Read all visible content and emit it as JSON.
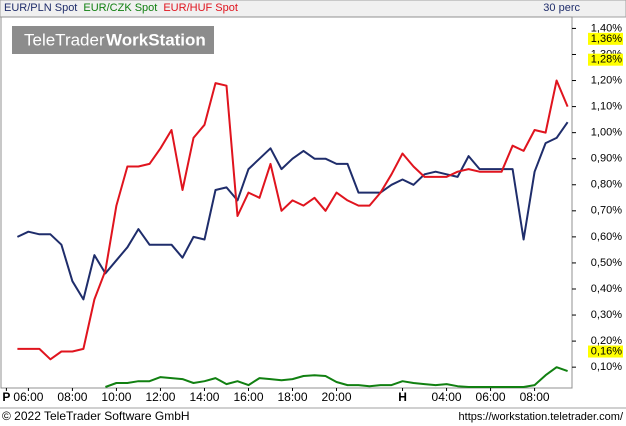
{
  "chart_data": {
    "type": "line",
    "period_label": "30 perc",
    "watermark": {
      "brand": "TeleTrader",
      "product": "WorkStation"
    },
    "x": [
      -0.3,
      0.2,
      0.7,
      1.2,
      1.7,
      2.2,
      2.7,
      3.2,
      3.7,
      4.2,
      4.7,
      5.2,
      5.7,
      6.2,
      6.7,
      7.2,
      7.7,
      8.2,
      8.7,
      9.2,
      9.7,
      10.2,
      10.7,
      11.2,
      11.7,
      12.2,
      12.7,
      13.2,
      13.7,
      14.2,
      14.7,
      15.2,
      15.7,
      16.2,
      16.7,
      17.2,
      17.7,
      18.2,
      18.7,
      19.2,
      19.7,
      20.2,
      20.7,
      21.2,
      21.7,
      22.2,
      22.7,
      23.2,
      23.7,
      24.2,
      24.7
    ],
    "series": [
      {
        "name": "EUR/PLN Spot",
        "color": "#1f2d6b",
        "values": [
          0.6,
          0.62,
          0.61,
          0.61,
          0.57,
          0.43,
          0.36,
          0.53,
          0.46,
          0.51,
          0.56,
          0.63,
          0.57,
          0.57,
          0.57,
          0.52,
          0.6,
          0.59,
          0.78,
          0.79,
          0.74,
          0.86,
          0.9,
          0.94,
          0.86,
          0.9,
          0.93,
          0.9,
          0.9,
          0.88,
          0.88,
          0.77,
          0.77,
          0.77,
          0.8,
          0.82,
          0.8,
          0.84,
          0.85,
          0.84,
          0.83,
          0.91,
          0.86,
          0.86,
          0.86,
          0.86,
          0.59,
          0.85,
          0.96,
          0.98,
          1.04
        ]
      },
      {
        "name": "EUR/CZK Spot",
        "color": "#118011",
        "values": [
          null,
          null,
          null,
          null,
          null,
          null,
          null,
          null,
          0.024,
          0.039,
          0.039,
          0.046,
          0.046,
          0.062,
          0.058,
          0.054,
          0.039,
          0.046,
          0.058,
          0.035,
          0.046,
          0.031,
          0.058,
          0.054,
          0.05,
          0.054,
          0.066,
          0.069,
          0.066,
          0.043,
          0.031,
          0.031,
          0.027,
          0.031,
          0.031,
          0.046,
          0.039,
          0.035,
          0.031,
          0.035,
          0.027,
          0.024,
          0.024,
          0.024,
          0.024,
          0.024,
          0.024,
          0.031,
          0.069,
          0.1,
          0.085
        ]
      },
      {
        "name": "EUR/HUF Spot",
        "color": "#e0141e",
        "values": [
          0.17,
          0.17,
          0.17,
          0.13,
          0.16,
          0.16,
          0.17,
          0.36,
          0.47,
          0.72,
          0.87,
          0.87,
          0.88,
          0.94,
          1.01,
          0.78,
          0.98,
          1.03,
          1.19,
          1.18,
          0.68,
          0.77,
          0.75,
          0.88,
          0.7,
          0.74,
          0.72,
          0.75,
          0.7,
          0.77,
          0.74,
          0.72,
          0.72,
          0.77,
          0.84,
          0.92,
          0.87,
          0.83,
          0.83,
          0.83,
          0.85,
          0.86,
          0.85,
          0.85,
          0.85,
          0.95,
          0.93,
          1.01,
          1.0,
          1.2,
          1.1
        ]
      }
    ],
    "markers": [
      {
        "value": 1.36,
        "label": "1,36%"
      },
      {
        "value": 1.28,
        "label": "1,28%"
      },
      {
        "value": 0.16,
        "label": "0,16%"
      }
    ],
    "xlim": [
      -1,
      24.9
    ],
    "xticks": [
      {
        "value": -0.8,
        "label": "P"
      },
      {
        "value": 0.2,
        "label": "06:00"
      },
      {
        "value": 2.2,
        "label": "08:00"
      },
      {
        "value": 4.2,
        "label": "10:00"
      },
      {
        "value": 6.2,
        "label": "12:00"
      },
      {
        "value": 8.2,
        "label": "14:00"
      },
      {
        "value": 10.2,
        "label": "16:00"
      },
      {
        "value": 12.2,
        "label": "18:00"
      },
      {
        "value": 14.2,
        "label": "20:00"
      },
      {
        "value": 17.2,
        "label": "H"
      },
      {
        "value": 19.2,
        "label": "04:00"
      },
      {
        "value": 21.2,
        "label": "06:00"
      },
      {
        "value": 23.2,
        "label": "08:00"
      }
    ],
    "ylim": [
      0.02,
      1.44
    ],
    "yticks": [
      {
        "value": 0.1,
        "label": "0,10%"
      },
      {
        "value": 0.2,
        "label": "0,20%"
      },
      {
        "value": 0.3,
        "label": "0,30%"
      },
      {
        "value": 0.4,
        "label": "0,40%"
      },
      {
        "value": 0.5,
        "label": "0,50%"
      },
      {
        "value": 0.6,
        "label": "0,60%"
      },
      {
        "value": 0.7,
        "label": "0,70%"
      },
      {
        "value": 0.8,
        "label": "0,80%"
      },
      {
        "value": 0.9,
        "label": "0,90%"
      },
      {
        "value": 1.0,
        "label": "1,00%"
      },
      {
        "value": 1.1,
        "label": "1,10%"
      },
      {
        "value": 1.2,
        "label": "1,20%"
      },
      {
        "value": 1.3,
        "label": "1,30%"
      },
      {
        "value": 1.4,
        "label": "1,40%"
      }
    ]
  },
  "footer": {
    "copyright": "© 2022 TeleTrader Software GmbH",
    "url": "https://workstation.teletrader.com/"
  }
}
